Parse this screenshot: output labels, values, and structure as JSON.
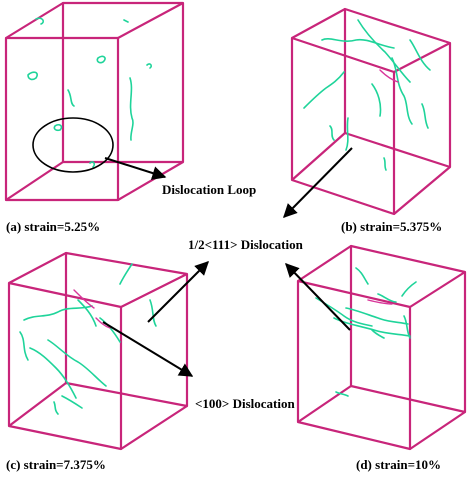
{
  "panels": [
    {
      "id": "a",
      "caption": "(a) strain=5.25%"
    },
    {
      "id": "b",
      "caption": "(b) strain=5.375%"
    },
    {
      "id": "c",
      "caption": "(c) strain=7.375%"
    },
    {
      "id": "d",
      "caption": "(d) strain=10%"
    }
  ],
  "annotations": {
    "loop": "Dislocation Loop",
    "half111": "1/2<111> Dislocation",
    "d100": "<100> Dislocation"
  },
  "colors": {
    "cube_edges": "#c8257a",
    "dislocation_111": "#1fd49a",
    "dislocation_100": "#d8369a",
    "arrows": "#000000"
  }
}
